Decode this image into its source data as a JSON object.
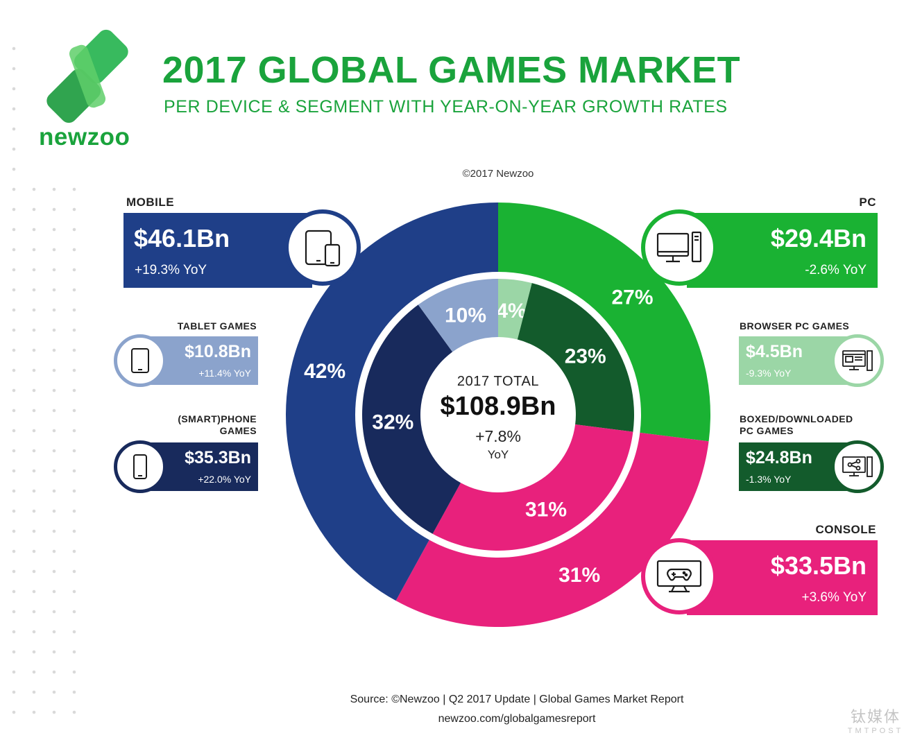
{
  "brand": {
    "name": "newzoo"
  },
  "header": {
    "title": "2017 GLOBAL GAMES MARKET",
    "subtitle": "PER DEVICE & SEGMENT WITH YEAR-ON-YEAR GROWTH RATES",
    "copyright": "©2017 Newzoo"
  },
  "segments": {
    "mobile": {
      "label": "MOBILE",
      "value": "$46.1Bn",
      "yoy": "+19.3% YoY",
      "icon": "tablet-phone-icon",
      "color": "#1f3f88"
    },
    "pc": {
      "label": "PC",
      "value": "$29.4Bn",
      "yoy": "-2.6% YoY",
      "icon": "desktop-computer-icon",
      "color": "#1ab233"
    },
    "console": {
      "label": "CONSOLE",
      "value": "$33.5Bn",
      "yoy": "+3.6% YoY",
      "icon": "tv-gamepad-icon",
      "color": "#e8217c"
    }
  },
  "subsegments": {
    "tablet": {
      "label": "TABLET GAMES",
      "value": "$10.8Bn",
      "yoy": "+11.4% YoY",
      "icon": "tablet-icon",
      "color": "#8ba3cc"
    },
    "phone": {
      "label_1": "(SMART)PHONE",
      "label_2": "GAMES",
      "value": "$35.3Bn",
      "yoy": "+22.0% YoY",
      "icon": "phone-icon",
      "color": "#182a5c"
    },
    "browser": {
      "label": "BROWSER PC GAMES",
      "value": "$4.5Bn",
      "yoy": "-9.3% YoY",
      "icon": "browser-window-icon",
      "color": "#9bd6a6"
    },
    "boxed": {
      "label_1": "BOXED/DOWNLOADED",
      "label_2": "PC GAMES",
      "value": "$24.8Bn",
      "yoy": "-1.3% YoY",
      "icon": "share-monitor-icon",
      "color": "#135b2c"
    }
  },
  "total": {
    "title": "2017 TOTAL",
    "value": "$108.9Bn",
    "yoy": "+7.8%",
    "yoy_unit": "YoY"
  },
  "chart_data": {
    "type": "pie",
    "title": "2017 GLOBAL GAMES MARKET",
    "rings": [
      {
        "name": "outer",
        "slices": [
          {
            "label": "PC",
            "value": 27,
            "display": "27%",
            "color": "#1ab233"
          },
          {
            "label": "CONSOLE",
            "value": 31,
            "display": "31%",
            "color": "#e8217c"
          },
          {
            "label": "MOBILE",
            "value": 42,
            "display": "42%",
            "color": "#1f3f88"
          }
        ]
      },
      {
        "name": "inner",
        "slices": [
          {
            "label": "BROWSER PC GAMES",
            "value": 4,
            "display": "4%",
            "color": "#9bd6a6"
          },
          {
            "label": "BOXED/DOWNLOADED PC GAMES",
            "value": 23,
            "display": "23%",
            "color": "#135b2c"
          },
          {
            "label": "CONSOLE",
            "value": 31,
            "display": "31%",
            "color": "#e8217c"
          },
          {
            "label": "(SMART)PHONE GAMES",
            "value": 32,
            "display": "32%",
            "color": "#182a5c"
          },
          {
            "label": "TABLET GAMES",
            "value": 10,
            "display": "10%",
            "color": "#8ba3cc"
          }
        ]
      }
    ]
  },
  "footer": {
    "source": "Source: ©Newzoo | Q2 2017 Update | Global Games Market Report",
    "url": "newzoo.com/globalgamesreport"
  },
  "watermark": {
    "line1": "钛媒体",
    "line2": "TMTPOST"
  }
}
